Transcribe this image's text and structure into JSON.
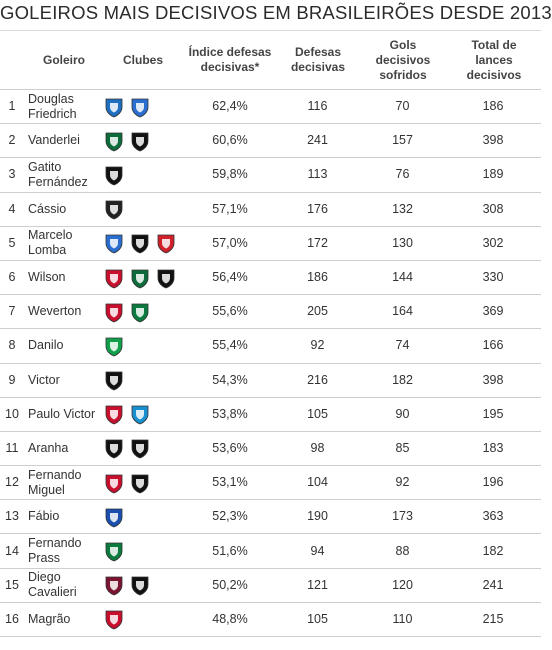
{
  "title": "GOLEIROS MAIS DECISIVOS EM BRASILEIRÕES DESDE 2013",
  "headers": {
    "goleiro": "Goleiro",
    "clubes": "Clubes",
    "indice": "Índice defesas decisivas*",
    "defesas": "Defesas decisivas",
    "gols": "Gols decisivos sofridos",
    "total": "Total de lances decisivos"
  },
  "rows": [
    {
      "rank": "1",
      "name": "Douglas Friedrich",
      "clubs": [
        {
          "icon": "avai-crest-icon",
          "color": "#1e6fc0"
        },
        {
          "icon": "bahia-crest-icon",
          "color": "#2a6fd0"
        }
      ],
      "index": "62,4%",
      "defesas": "116",
      "gols": "70",
      "total": "186"
    },
    {
      "rank": "2",
      "name": "Vanderlei",
      "clubs": [
        {
          "icon": "coritiba-crest-icon",
          "color": "#0b6b3a"
        },
        {
          "icon": "santos-crest-icon",
          "color": "#111111"
        }
      ],
      "index": "60,6%",
      "defesas": "241",
      "gols": "157",
      "total": "398"
    },
    {
      "rank": "3",
      "name": "Gatito Fernández",
      "clubs": [
        {
          "icon": "botafogo-crest-icon",
          "color": "#111111"
        }
      ],
      "index": "59,8%",
      "defesas": "113",
      "gols": "76",
      "total": "189"
    },
    {
      "rank": "4",
      "name": "Cássio",
      "clubs": [
        {
          "icon": "corinthians-crest-icon",
          "color": "#222222"
        }
      ],
      "index": "57,1%",
      "defesas": "176",
      "gols": "132",
      "total": "308"
    },
    {
      "rank": "5",
      "name": "Marcelo Lomba",
      "clubs": [
        {
          "icon": "bahia-crest-icon",
          "color": "#2a6fd0"
        },
        {
          "icon": "ponte-preta-crest-icon",
          "color": "#111111"
        },
        {
          "icon": "internacional-crest-icon",
          "color": "#d0202a"
        }
      ],
      "index": "57,0%",
      "defesas": "172",
      "gols": "130",
      "total": "302"
    },
    {
      "rank": "6",
      "name": "Wilson",
      "clubs": [
        {
          "icon": "vitoria-crest-icon",
          "color": "#c8102e"
        },
        {
          "icon": "coritiba-crest-icon",
          "color": "#0b6b3a"
        },
        {
          "icon": "atletico-mg-crest-icon",
          "color": "#111111"
        }
      ],
      "index": "56,4%",
      "defesas": "186",
      "gols": "144",
      "total": "330"
    },
    {
      "rank": "7",
      "name": "Weverton",
      "clubs": [
        {
          "icon": "athletico-pr-crest-icon",
          "color": "#c8102e"
        },
        {
          "icon": "palmeiras-crest-icon",
          "color": "#0a7a3e"
        }
      ],
      "index": "55,6%",
      "defesas": "205",
      "gols": "164",
      "total": "369"
    },
    {
      "rank": "8",
      "name": "Danilo",
      "clubs": [
        {
          "icon": "chapecoense-crest-icon",
          "color": "#10a04a"
        }
      ],
      "index": "55,4%",
      "defesas": "92",
      "gols": "74",
      "total": "166"
    },
    {
      "rank": "9",
      "name": "Victor",
      "clubs": [
        {
          "icon": "atletico-mg-crest-icon",
          "color": "#111111"
        }
      ],
      "index": "54,3%",
      "defesas": "216",
      "gols": "182",
      "total": "398"
    },
    {
      "rank": "10",
      "name": "Paulo Victor",
      "clubs": [
        {
          "icon": "flamengo-crest-icon",
          "color": "#c8102e"
        },
        {
          "icon": "gremio-crest-icon",
          "color": "#1a8fd0"
        }
      ],
      "index": "53,8%",
      "defesas": "105",
      "gols": "90",
      "total": "195"
    },
    {
      "rank": "11",
      "name": "Aranha",
      "clubs": [
        {
          "icon": "ponte-preta-crest-icon",
          "color": "#111111"
        },
        {
          "icon": "santos-crest-icon",
          "color": "#111111"
        }
      ],
      "index": "53,6%",
      "defesas": "98",
      "gols": "85",
      "total": "183"
    },
    {
      "rank": "12",
      "name": "Fernando Miguel",
      "clubs": [
        {
          "icon": "vitoria-crest-icon",
          "color": "#c8102e"
        },
        {
          "icon": "vasco-crest-icon",
          "color": "#111111"
        }
      ],
      "index": "53,1%",
      "defesas": "104",
      "gols": "92",
      "total": "196"
    },
    {
      "rank": "13",
      "name": "Fábio",
      "clubs": [
        {
          "icon": "cruzeiro-crest-icon",
          "color": "#1a4fb0"
        }
      ],
      "index": "52,3%",
      "defesas": "190",
      "gols": "173",
      "total": "363"
    },
    {
      "rank": "14",
      "name": "Fernando Prass",
      "clubs": [
        {
          "icon": "palmeiras-crest-icon",
          "color": "#0a7a3e"
        }
      ],
      "index": "51,6%",
      "defesas": "94",
      "gols": "88",
      "total": "182"
    },
    {
      "rank": "15",
      "name": "Diego Cavalieri",
      "clubs": [
        {
          "icon": "fluminense-crest-icon",
          "color": "#7a1430"
        },
        {
          "icon": "botafogo-crest-icon",
          "color": "#111111"
        }
      ],
      "index": "50,2%",
      "defesas": "121",
      "gols": "120",
      "total": "241"
    },
    {
      "rank": "16",
      "name": "Magrão",
      "clubs": [
        {
          "icon": "sport-crest-icon",
          "color": "#c8102e"
        }
      ],
      "index": "48,8%",
      "defesas": "105",
      "gols": "110",
      "total": "215"
    }
  ]
}
